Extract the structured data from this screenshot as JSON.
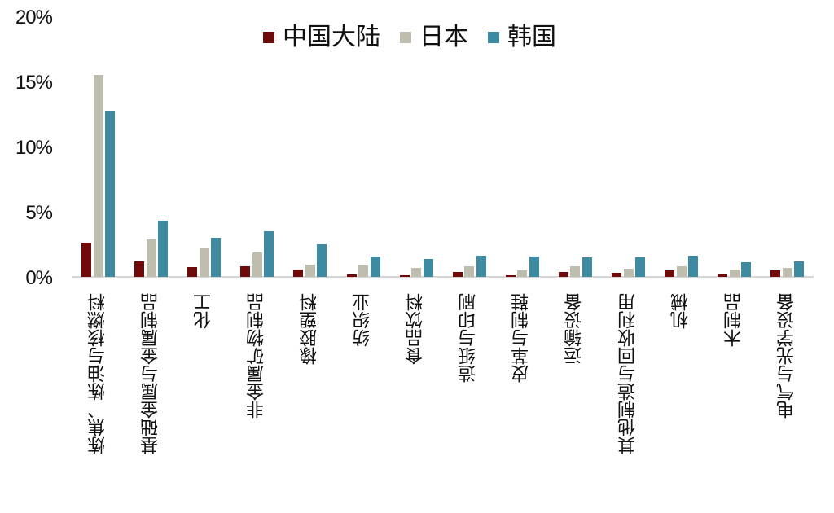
{
  "chart_data": {
    "type": "bar",
    "title": "",
    "xlabel": "",
    "ylabel": "",
    "ylim": [
      0,
      20
    ],
    "yticks": [
      "0%",
      "5%",
      "10%",
      "15%",
      "20%"
    ],
    "grid": false,
    "legend_position": "top",
    "categories": [
      "炼焦、炼油与核燃料",
      "基础金属与金属制品",
      "化工",
      "非金属矿物制品",
      "橡胶塑料",
      "纺织业",
      "食品饮料",
      "造纸与印刷",
      "皮革与制鞋",
      "运输设备",
      "其他制造与回收利用",
      "机械",
      "木制品",
      "电气与光学设备"
    ],
    "series": [
      {
        "name": "中国大陆",
        "color": "#6E0A0A",
        "values": [
          2.6,
          1.2,
          0.75,
          0.8,
          0.55,
          0.2,
          0.1,
          0.35,
          0.15,
          0.35,
          0.3,
          0.5,
          0.25,
          0.5
        ]
      },
      {
        "name": "日本",
        "color": "#BEBDAE",
        "values": [
          15.5,
          2.9,
          2.25,
          1.9,
          0.95,
          0.9,
          0.7,
          0.8,
          0.5,
          0.8,
          0.65,
          0.8,
          0.55,
          0.7
        ]
      },
      {
        "name": "韩国",
        "color": "#3E8AA0",
        "values": [
          12.75,
          4.3,
          3.0,
          3.5,
          2.5,
          1.55,
          1.4,
          1.65,
          1.55,
          1.5,
          1.5,
          1.65,
          1.1,
          1.2
        ]
      }
    ]
  }
}
